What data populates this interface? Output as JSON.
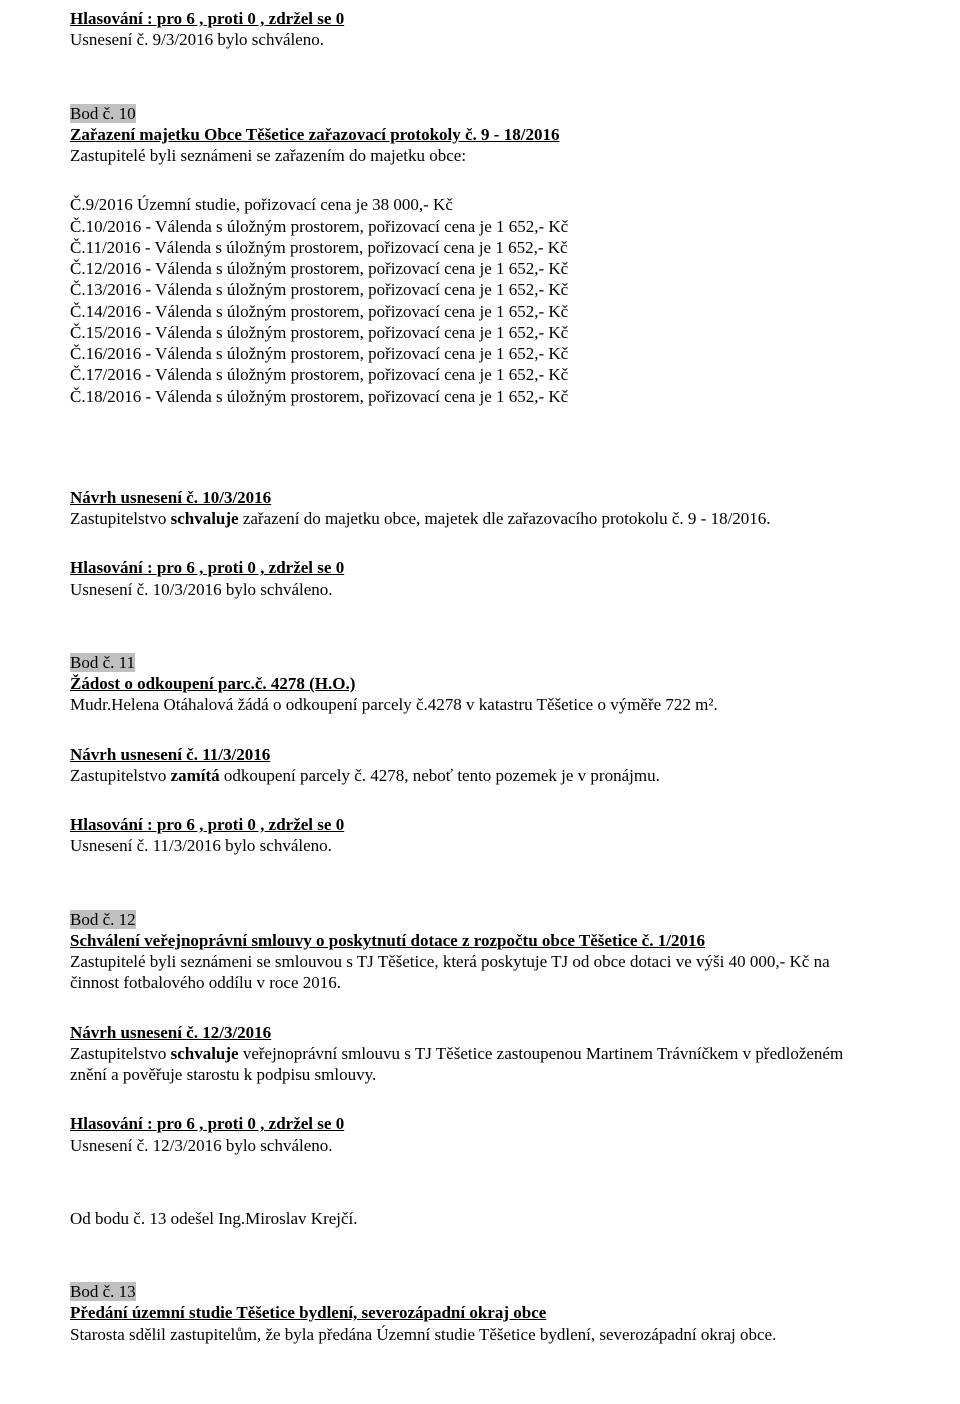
{
  "vote1": {
    "text": "Hlasování : pro    6     , proti    0        , zdržel se  0",
    "result": "Usnesení č. 9/3/2016 bylo schváleno."
  },
  "bod10": {
    "label": "Bod č. 10",
    "title": "Zařazení majetku Obce Těšetice  zařazovací protokoly  č.  9 - 18/2016",
    "intro": "Zastupitelé byli seznámeni se zařazením do majetku obce:",
    "item1": "Č.9/2016   Územní studie, pořizovací cena je 38 000,- Kč",
    "item2": "Č.10/2016 - Válenda s úložným prostorem, pořizovací cena je 1 652,- Kč",
    "item3": "Č.11/2016 - Válenda s úložným prostorem, pořizovací cena je 1 652,- Kč",
    "item4": "Č.12/2016 - Válenda s úložným prostorem, pořizovací cena je 1 652,- Kč",
    "item5": "Č.13/2016 - Válenda s úložným prostorem, pořizovací cena je 1 652,- Kč",
    "item6": "Č.14/2016 - Válenda s úložným prostorem, pořizovací cena je 1 652,- Kč",
    "item7": "Č.15/2016 - Válenda s úložným prostorem, pořizovací cena je 1 652,- Kč",
    "item8": "Č.16/2016 - Válenda s úložným prostorem, pořizovací cena je 1 652,- Kč",
    "item9": "Č.17/2016 - Válenda s úložným prostorem, pořizovací cena je 1 652,- Kč",
    "item10": "Č.18/2016 - Válenda s úložným prostorem, pořizovací cena je 1 652,- Kč"
  },
  "navrh10": {
    "title": "Návrh usnesení č.  10/3/2016",
    "body_pre": "Zastupitelstvo ",
    "body_bold": "schvaluje",
    "body_post": " zařazení do majetku obce, majetek dle zařazovacího protokolu č. 9 - 18/2016."
  },
  "vote10": {
    "text": "Hlasování : pro    6     , proti    0        , zdržel se  0",
    "result": "Usnesení č. 10/3/2016 bylo schváleno."
  },
  "bod11": {
    "label": "Bod č. 11",
    "title": "Žádost o odkoupení parc.č. 4278 (H.O.)",
    "body": "Mudr.Helena Otáhalová žádá o odkoupení parcely č.4278 v katastru Těšetice o výměře 722 m²."
  },
  "navrh11": {
    "title": "Návrh usnesení č.  11/3/2016",
    "body_pre": "Zastupitelstvo ",
    "body_bold": "zamítá",
    "body_post": " odkoupení parcely č. 4278, neboť tento pozemek je v pronájmu."
  },
  "vote11": {
    "text": "Hlasování : pro    6     , proti    0        , zdržel se 0",
    "result": "Usnesení č. 11/3/2016 bylo schváleno."
  },
  "bod12": {
    "label": "Bod č. 12",
    "title": "Schválení veřejnoprávní smlouvy o poskytnutí dotace z rozpočtu obce Těšetice č. 1/2016",
    "body1": "Zastupitelé byli seznámeni se smlouvou s TJ Těšetice, která poskytuje TJ od obce dotaci ve výši 40 000,- Kč na",
    "body2": "činnost fotbalového oddílu v roce 2016."
  },
  "navrh12": {
    "title": "Návrh usnesení č.  12/3/2016",
    "body_pre": "Zastupitelstvo ",
    "body_bold": "schvaluje",
    "body_post": " veřejnoprávní smlouvu s TJ Těšetice zastoupenou Martinem Trávníčkem v předloženém",
    "body_line2": "znění a pověřuje starostu k podpisu smlouvy."
  },
  "vote12": {
    "text": "Hlasování : pro    6     , proti    0        , zdržel se  0",
    "result": "Usnesení č. 12/3/2016 bylo schváleno."
  },
  "odbodu13": "Od bodu č. 13 odešel Ing.Miroslav Krejčí.",
  "bod13": {
    "label": "Bod č. 13",
    "title": "Předání územní studie Těšetice  bydlení, severozápadní okraj obce",
    "body": "Starosta sdělil zastupitelům, že byla předána Územní studie Těšetice  bydlení, severozápadní okraj obce."
  }
}
